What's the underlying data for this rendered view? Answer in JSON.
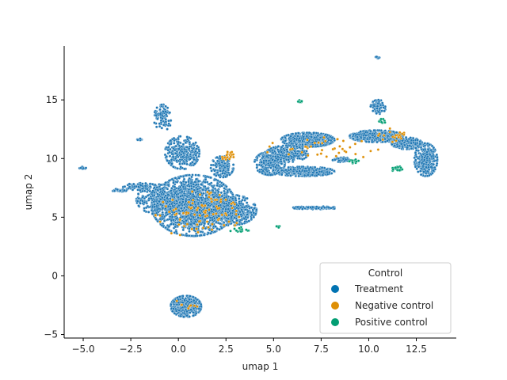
{
  "chart_data": {
    "type": "scatter",
    "title": "",
    "xlabel": "umap 1",
    "ylabel": "umap 2",
    "xlim": [
      -6.0,
      14.6
    ],
    "ylim": [
      -5.3,
      19.6
    ],
    "xticks": [
      {
        "value": -5.0,
        "label": "−5.0"
      },
      {
        "value": -2.5,
        "label": "−2.5"
      },
      {
        "value": 0.0,
        "label": "0.0"
      },
      {
        "value": 2.5,
        "label": "2.5"
      },
      {
        "value": 5.0,
        "label": "5.0"
      },
      {
        "value": 7.5,
        "label": "7.5"
      },
      {
        "value": 10.0,
        "label": "10.0"
      },
      {
        "value": 12.5,
        "label": "12.5"
      }
    ],
    "yticks": [
      {
        "value": -5,
        "label": "−5"
      },
      {
        "value": 0,
        "label": "0"
      },
      {
        "value": 5,
        "label": "5"
      },
      {
        "value": 10,
        "label": "10"
      },
      {
        "value": 15,
        "label": "15"
      }
    ],
    "grid": false,
    "legend": {
      "title": "Control",
      "placement": "lower-right",
      "entries": [
        {
          "name": "Treatment",
          "color": "#0173b2"
        },
        {
          "name": "Negative control",
          "color": "#de8f05"
        },
        {
          "name": "Positive control",
          "color": "#029e73"
        }
      ]
    },
    "series": [
      {
        "name": "Treatment",
        "color": "#1f77b4",
        "clusters": [
          {
            "region": "main blob",
            "cx": 0.8,
            "cy": 6.0,
            "rx": 2.2,
            "ry": 2.6,
            "n": 1600
          },
          {
            "region": "main blob right lobe",
            "cx": 2.8,
            "cy": 5.6,
            "rx": 1.3,
            "ry": 1.3,
            "n": 500
          },
          {
            "region": "main blob left lobe",
            "cx": -0.9,
            "cy": 6.5,
            "rx": 1.3,
            "ry": 1.3,
            "n": 400
          },
          {
            "region": "upper stalk",
            "cx": 0.2,
            "cy": 10.5,
            "rx": 0.9,
            "ry": 1.4,
            "n": 300
          },
          {
            "region": "top spike",
            "cx": -0.8,
            "cy": 13.5,
            "rx": 0.5,
            "ry": 1.1,
            "n": 90
          },
          {
            "region": "right shoulder",
            "cx": 2.3,
            "cy": 9.3,
            "rx": 0.6,
            "ry": 0.9,
            "n": 160
          },
          {
            "region": "left arm",
            "cx": -2.0,
            "cy": 7.6,
            "rx": 0.9,
            "ry": 0.3,
            "n": 80
          },
          {
            "region": "lower cluster",
            "cx": 0.4,
            "cy": -2.6,
            "rx": 0.8,
            "ry": 0.9,
            "n": 500
          },
          {
            "region": "left mini-cluster",
            "cx": -3.1,
            "cy": 7.3,
            "rx": 0.4,
            "ry": 0.12,
            "n": 40
          },
          {
            "region": "far-left fragment",
            "cx": -5.0,
            "cy": 9.2,
            "rx": 0.2,
            "ry": 0.1,
            "n": 12
          },
          {
            "region": "small fragment",
            "cx": -2.0,
            "cy": 11.6,
            "rx": 0.2,
            "ry": 0.1,
            "n": 10
          },
          {
            "region": "arc upper",
            "cx": 6.8,
            "cy": 11.6,
            "rx": 1.4,
            "ry": 0.6,
            "n": 600
          },
          {
            "region": "arc lower band",
            "cx": 6.6,
            "cy": 8.9,
            "rx": 1.6,
            "ry": 0.4,
            "n": 450
          },
          {
            "region": "arc left bulge",
            "cx": 4.8,
            "cy": 9.6,
            "rx": 0.8,
            "ry": 1.0,
            "n": 300
          },
          {
            "region": "arc mid body",
            "cx": 5.7,
            "cy": 10.4,
            "rx": 1.1,
            "ry": 0.7,
            "n": 300
          },
          {
            "region": "arc right",
            "cx": 10.4,
            "cy": 11.9,
            "rx": 1.4,
            "ry": 0.5,
            "n": 500
          },
          {
            "region": "far right tail",
            "cx": 13.0,
            "cy": 9.9,
            "rx": 0.6,
            "ry": 1.4,
            "n": 350
          },
          {
            "region": "tail upper",
            "cx": 12.0,
            "cy": 11.3,
            "rx": 0.8,
            "ry": 0.5,
            "n": 220
          },
          {
            "region": "tail top",
            "cx": 10.5,
            "cy": 14.4,
            "rx": 0.4,
            "ry": 0.6,
            "n": 90
          },
          {
            "region": "strip",
            "cx": 7.2,
            "cy": 5.8,
            "rx": 1.2,
            "ry": 0.12,
            "n": 110
          },
          {
            "region": "mid fragment",
            "cx": 8.6,
            "cy": 9.9,
            "rx": 0.5,
            "ry": 0.2,
            "n": 60
          },
          {
            "region": "top fragment",
            "cx": 10.5,
            "cy": 18.6,
            "rx": 0.15,
            "ry": 0.12,
            "n": 10
          }
        ]
      },
      {
        "name": "Negative control",
        "color": "#de8f05",
        "clusters": [
          {
            "region": "main blob",
            "cx": 1.0,
            "cy": 5.2,
            "rx": 2.2,
            "ry": 2.0,
            "n": 90
          },
          {
            "region": "right shoulder",
            "cx": 2.6,
            "cy": 10.2,
            "rx": 0.3,
            "ry": 0.5,
            "n": 20
          },
          {
            "region": "arc",
            "cx": 7.5,
            "cy": 10.8,
            "rx": 3.0,
            "ry": 1.0,
            "n": 40
          },
          {
            "region": "tail",
            "cx": 11.5,
            "cy": 12.0,
            "rx": 1.0,
            "ry": 0.6,
            "n": 20
          },
          {
            "region": "lower cluster",
            "cx": 0.4,
            "cy": -2.5,
            "rx": 0.6,
            "ry": 0.6,
            "n": 8
          }
        ]
      },
      {
        "name": "Positive control",
        "color": "#029e73",
        "clusters": [
          {
            "region": "small cluster",
            "cx": 6.4,
            "cy": 14.9,
            "rx": 0.12,
            "ry": 0.1,
            "n": 10
          },
          {
            "region": "small cluster",
            "cx": 11.5,
            "cy": 9.1,
            "rx": 0.3,
            "ry": 0.25,
            "n": 20
          },
          {
            "region": "small cluster",
            "cx": 9.2,
            "cy": 9.8,
            "rx": 0.3,
            "ry": 0.2,
            "n": 12
          },
          {
            "region": "small cluster",
            "cx": 3.2,
            "cy": 3.9,
            "rx": 0.5,
            "ry": 0.25,
            "n": 15
          },
          {
            "region": "small cluster",
            "cx": 5.3,
            "cy": 4.2,
            "rx": 0.15,
            "ry": 0.08,
            "n": 6
          },
          {
            "region": "small cluster",
            "cx": 10.8,
            "cy": 13.2,
            "rx": 0.3,
            "ry": 0.3,
            "n": 10
          }
        ]
      }
    ]
  }
}
